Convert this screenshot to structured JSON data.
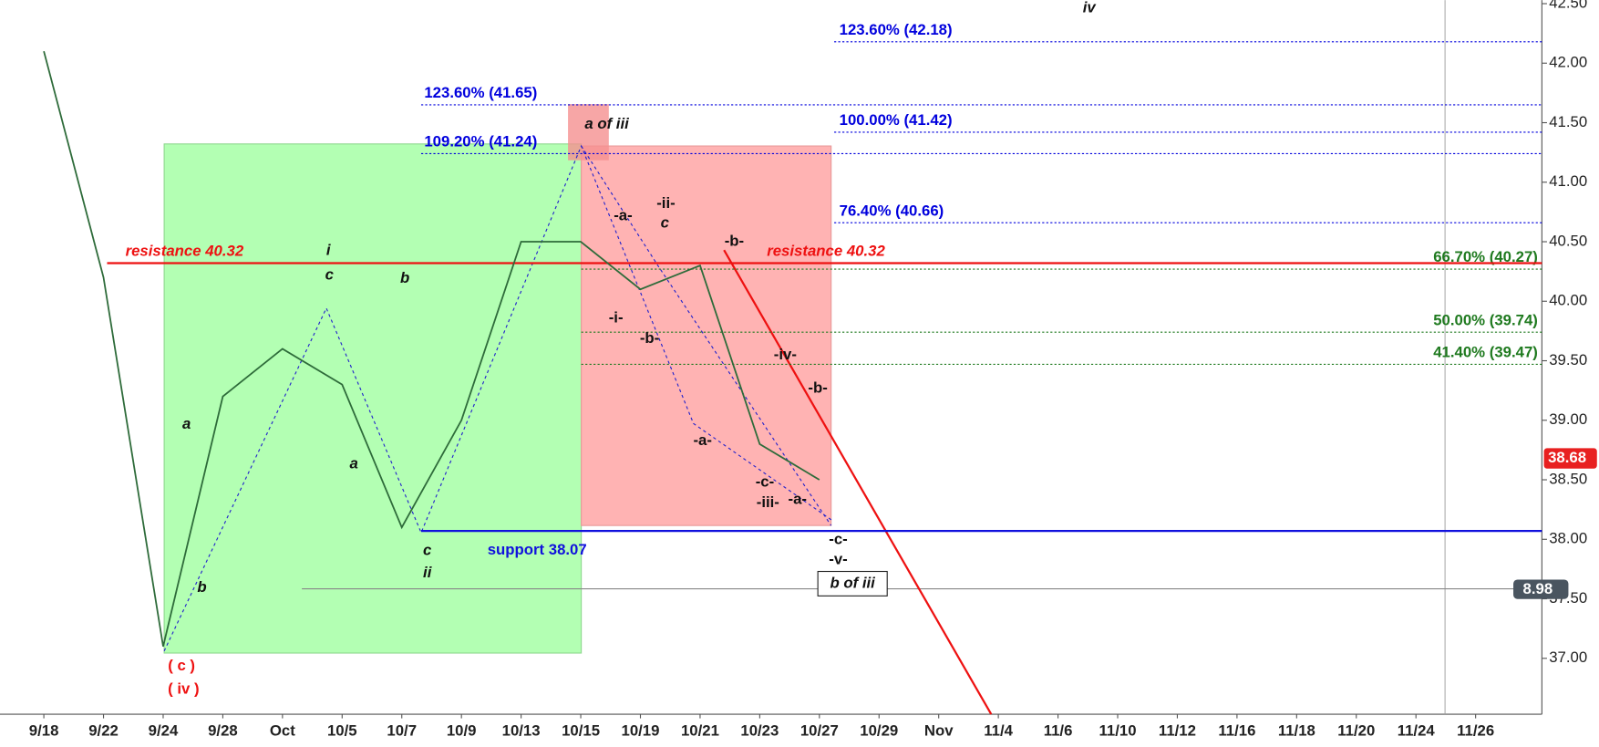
{
  "chart_data": {
    "type": "line",
    "categories": [
      "9/18",
      "9/22",
      "9/24",
      "9/28",
      "Oct",
      "10/5",
      "10/7",
      "10/9",
      "10/13",
      "10/15",
      "10/19",
      "10/21",
      "10/23",
      "10/27",
      "10/29",
      "Nov",
      "11/4",
      "11/6",
      "11/10",
      "11/12",
      "11/16",
      "11/18",
      "11/20",
      "11/24",
      "11/26"
    ],
    "series": [
      {
        "color": "#2e6b3a",
        "values": [
          42.1,
          40.2,
          37.1,
          39.2,
          39.6,
          39.3,
          38.1,
          39.0,
          40.5,
          40.5,
          40.1,
          40.3,
          38.8,
          38.5,
          null,
          null,
          null,
          null,
          null,
          null,
          null,
          null,
          null,
          null,
          null
        ]
      }
    ],
    "ylim": [
      36.53,
      42.53
    ],
    "yticks": [
      {
        "value": 37,
        "label": "37.00"
      },
      {
        "value": 37.5,
        "label": "37.50"
      },
      {
        "value": 38,
        "label": "38.00"
      },
      {
        "value": 38.5,
        "label": "38.50"
      },
      {
        "value": 39,
        "label": "39.00"
      },
      {
        "value": 39.5,
        "label": "39.50"
      },
      {
        "value": 40,
        "label": "40.00"
      },
      {
        "value": 40.5,
        "label": "40.50"
      },
      {
        "value": 41,
        "label": "41.00"
      },
      {
        "value": 41.5,
        "label": "41.50"
      },
      {
        "value": 42,
        "label": "42.00"
      },
      {
        "value": 42.5,
        "label": "42.50"
      }
    ],
    "levels": [
      {
        "label": "123.60% (42.18)",
        "value": 42.18,
        "color": "#0000dd"
      },
      {
        "label": "123.60% (41.65)",
        "value": 41.65,
        "color": "#0000dd"
      },
      {
        "label": "100.00% (41.42)",
        "value": 41.42,
        "color": "#0000dd"
      },
      {
        "label": "109.20% (41.24)",
        "value": 41.24,
        "color": "#0000dd"
      },
      {
        "label": "76.40% (40.66)",
        "value": 40.66,
        "color": "#0000dd"
      },
      {
        "label": "66.70% (40.27)",
        "value": 40.27,
        "color": "#1f7a1f"
      },
      {
        "label": "50.00% (39.74)",
        "value": 39.74,
        "color": "#1f7a1f"
      },
      {
        "label": "41.40% (39.47)",
        "value": 39.47,
        "color": "#1f7a1f"
      },
      {
        "label": "resistance 40.32",
        "value": 40.32,
        "color": "#ee1111"
      },
      {
        "label": "support 38.07",
        "value": 38.07,
        "color": "#1111dd"
      }
    ],
    "last_price": 38.68,
    "badge": "8.98",
    "annotations": [
      "iv",
      "i",
      "c",
      "b",
      "a",
      "b",
      "a",
      "c",
      "ii",
      "a of iii",
      "-a-",
      "-ii-",
      "c",
      "-b-",
      "-i-",
      "-b-",
      "-a-",
      "-iv-",
      "-b-",
      "-c-",
      "-iii-",
      "-a-",
      "-c-",
      "-v-",
      "b of iii",
      "( c )",
      "( iv )"
    ]
  }
}
